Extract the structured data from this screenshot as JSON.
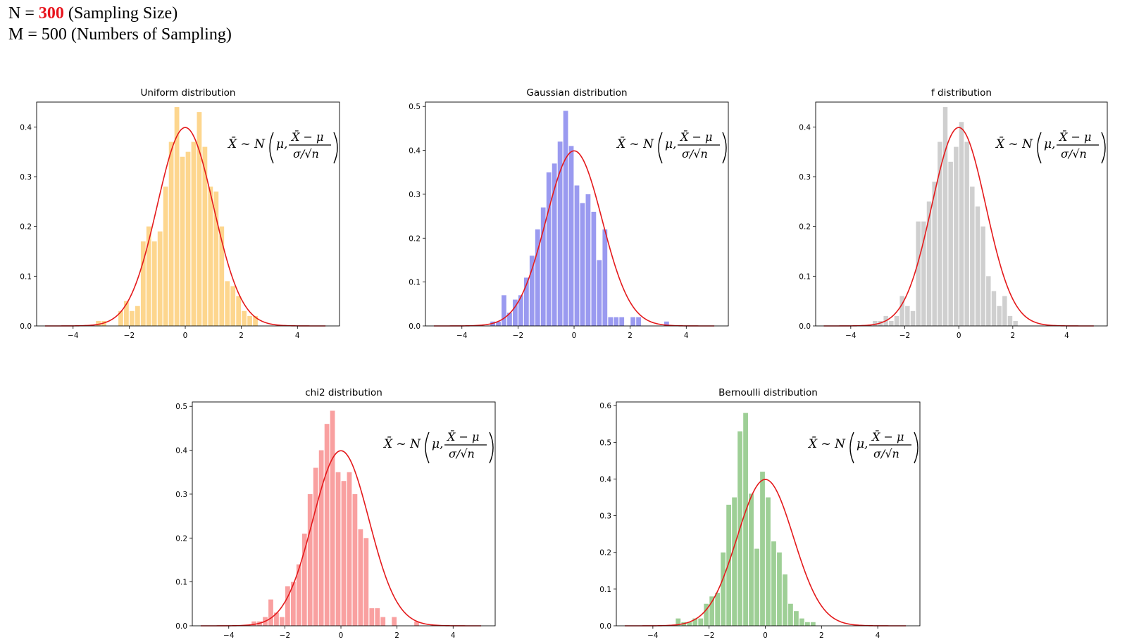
{
  "header": {
    "line1_prefix": "N = ",
    "line1_value": "300",
    "line1_suffix": " (Sampling Size)",
    "line2": "M = 500 (Numbers of Sampling)",
    "highlight_color": "#e8131c"
  },
  "formula": {
    "lhs": "X̄ ~ N",
    "mu": "μ,",
    "numerator": "X̄ − μ",
    "denominator": "σ/√n"
  },
  "curve_color": "#e41a1c",
  "chart_data": [
    {
      "type": "bar",
      "title": "Uniform distribution",
      "color": "#fdd68e",
      "xlim": [
        -5.3,
        5.5
      ],
      "ylim": [
        0,
        0.45
      ],
      "xticks": [
        -4,
        -2,
        0,
        2,
        4
      ],
      "yticks": [
        0.0,
        0.1,
        0.2,
        0.3,
        0.4
      ],
      "bin_width": 0.2,
      "bin_start": -3.2,
      "values": [
        0.01,
        0.01,
        0.0,
        0.0,
        0.03,
        0.05,
        0.03,
        0.04,
        0.17,
        0.2,
        0.17,
        0.19,
        0.28,
        0.37,
        0.44,
        0.34,
        0.35,
        0.37,
        0.43,
        0.36,
        0.28,
        0.27,
        0.2,
        0.09,
        0.08,
        0.06,
        0.03,
        0.02,
        0.02,
        0.0
      ],
      "curve_range": [
        -5,
        5
      ]
    },
    {
      "type": "bar",
      "title": "Gaussian distribution",
      "color": "#9a9af0",
      "xlim": [
        -5.3,
        5.5
      ],
      "ylim": [
        0,
        0.51
      ],
      "xticks": [
        -4,
        -2,
        0,
        2,
        4
      ],
      "yticks": [
        0.0,
        0.1,
        0.2,
        0.3,
        0.4,
        0.5
      ],
      "bin_width": 0.2,
      "bin_start": -3.0,
      "values": [
        0.01,
        0.01,
        0.07,
        0.03,
        0.06,
        0.07,
        0.11,
        0.16,
        0.22,
        0.27,
        0.35,
        0.37,
        0.42,
        0.49,
        0.41,
        0.32,
        0.28,
        0.3,
        0.26,
        0.15,
        0.22,
        0.02,
        0.02,
        0.02,
        0.0,
        0.02,
        0.02,
        0.0,
        0.0,
        0.0,
        0.0,
        0.01
      ],
      "curve_range": [
        -5,
        5
      ]
    },
    {
      "type": "bar",
      "title": "f distribution",
      "color": "#cfcfcf",
      "xlim": [
        -5.3,
        5.5
      ],
      "ylim": [
        0,
        0.45
      ],
      "xticks": [
        -4,
        -2,
        0,
        2,
        4
      ],
      "yticks": [
        0.0,
        0.1,
        0.2,
        0.3,
        0.4
      ],
      "bin_width": 0.2,
      "bin_start": -3.2,
      "values": [
        0.01,
        0.01,
        0.02,
        0.01,
        0.02,
        0.06,
        0.04,
        0.03,
        0.21,
        0.21,
        0.25,
        0.29,
        0.37,
        0.44,
        0.33,
        0.36,
        0.41,
        0.37,
        0.28,
        0.24,
        0.2,
        0.1,
        0.07,
        0.04,
        0.06,
        0.02,
        0.01,
        0.0
      ],
      "curve_range": [
        -5,
        5
      ]
    },
    {
      "type": "bar",
      "title": "chi2 distribution",
      "color": "#f9a0a0",
      "xlim": [
        -5.3,
        5.5
      ],
      "ylim": [
        0,
        0.51
      ],
      "xticks": [
        -4,
        -2,
        0,
        2,
        4
      ],
      "yticks": [
        0.0,
        0.1,
        0.2,
        0.3,
        0.4,
        0.5
      ],
      "bin_width": 0.2,
      "bin_start": -3.2,
      "values": [
        0.01,
        0.01,
        0.02,
        0.06,
        0.03,
        0.02,
        0.09,
        0.1,
        0.14,
        0.21,
        0.3,
        0.36,
        0.4,
        0.46,
        0.49,
        0.35,
        0.33,
        0.35,
        0.3,
        0.22,
        0.2,
        0.04,
        0.04,
        0.02,
        0.0,
        0.02,
        0.0,
        0.0,
        0.0,
        0.01
      ],
      "curve_range": [
        -5,
        5
      ]
    },
    {
      "type": "bar",
      "title": "Bernoulli distribution",
      "color": "#9ecf96",
      "xlim": [
        -5.3,
        5.5
      ],
      "ylim": [
        0,
        0.61
      ],
      "xticks": [
        -4,
        -2,
        0,
        2,
        4
      ],
      "yticks": [
        0.0,
        0.1,
        0.2,
        0.3,
        0.4,
        0.5,
        0.6
      ],
      "bin_width": 0.2,
      "bin_start": -3.2,
      "values": [
        0.02,
        0.01,
        0.01,
        0.02,
        0.02,
        0.06,
        0.08,
        0.09,
        0.2,
        0.33,
        0.35,
        0.53,
        0.58,
        0.36,
        0.21,
        0.42,
        0.35,
        0.23,
        0.2,
        0.14,
        0.06,
        0.04,
        0.02,
        0.01,
        0.01
      ],
      "curve_range": [
        -5,
        5
      ]
    }
  ]
}
